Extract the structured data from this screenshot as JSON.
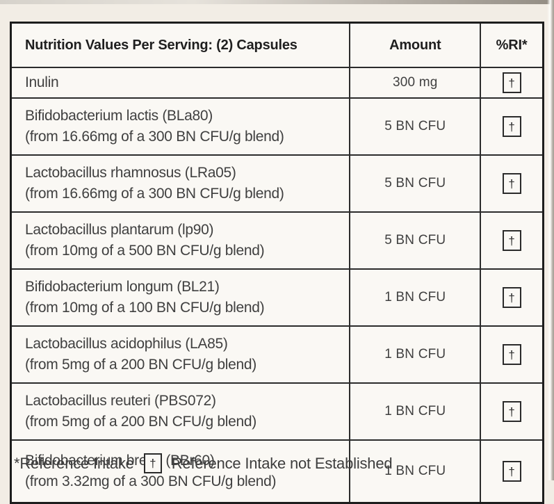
{
  "page": {
    "background": "#f2ede5",
    "table_background": "#faf8f4",
    "border_color": "#1d1d1d",
    "text_color": "#3d3d3d"
  },
  "table": {
    "headers": {
      "name": "Nutrition Values Per Serving: (2) Capsules",
      "amount": "Amount",
      "ri": "%RI*"
    },
    "rows": [
      {
        "name": "Inulin",
        "detail": "",
        "amount": "300 mg",
        "ri": "†"
      },
      {
        "name": "Bifidobacterium lactis (BLa80)",
        "detail": "(from 16.66mg of a 300 BN CFU/g blend)",
        "amount": "5 BN CFU",
        "ri": "†"
      },
      {
        "name": "Lactobacillus rhamnosus (LRa05)",
        "detail": "(from 16.66mg of a 300 BN CFU/g blend)",
        "amount": "5 BN CFU",
        "ri": "†"
      },
      {
        "name": "Lactobacillus plantarum (lp90)",
        "detail": "(from 10mg of a 500 BN CFU/g blend)",
        "amount": "5 BN CFU",
        "ri": "†"
      },
      {
        "name": "Bifidobacterium longum (BL21)",
        "detail": "(from 10mg of a 100 BN CFU/g blend)",
        "amount": "1 BN CFU",
        "ri": "†"
      },
      {
        "name": "Lactobacillus acidophilus (LA85)",
        "detail": "(from 5mg of a 200 BN CFU/g blend)",
        "amount": "1 BN CFU",
        "ri": "†"
      },
      {
        "name": "Lactobacillus reuteri (PBS072)",
        "detail": "(from 5mg of a 200 BN CFU/g blend)",
        "amount": "1 BN CFU",
        "ri": "†"
      },
      {
        "name": "Bifidobacterium breve (BBr60)",
        "detail": "(from 3.32mg of a 300 BN CFU/g blend)",
        "amount": "1 BN CFU",
        "ri": "†"
      }
    ]
  },
  "footnote": {
    "reference_intake": "*Reference Intake",
    "dagger": "†",
    "not_established": "Reference Intake not Established"
  }
}
